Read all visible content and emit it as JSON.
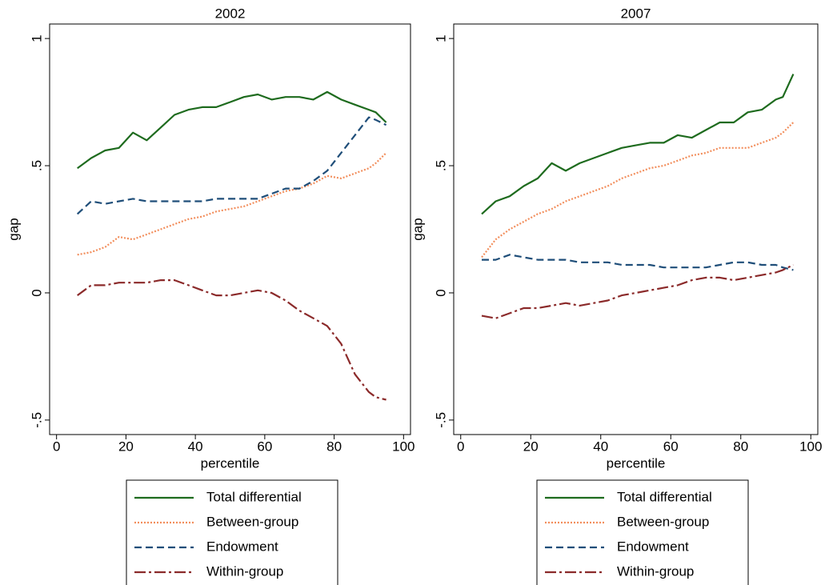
{
  "chart_data": [
    {
      "type": "line",
      "title": "2002",
      "x_label": "percentile",
      "y_label": "gap",
      "x": [
        6,
        10,
        14,
        18,
        22,
        26,
        30,
        34,
        38,
        42,
        46,
        50,
        54,
        58,
        62,
        66,
        70,
        74,
        78,
        82,
        86,
        90,
        92,
        95
      ],
      "xlim": [
        -2,
        102
      ],
      "xticks": [
        0,
        20,
        40,
        60,
        80,
        100
      ],
      "ylim": [
        -0.557,
        1.057
      ],
      "yticks": [
        {
          "value": -0.5,
          "label": "-.5"
        },
        0,
        {
          "value": 0.5,
          "label": ".5"
        },
        1
      ],
      "series": [
        {
          "name": "Total differential",
          "color": "#1e6b1e",
          "dash": "solid",
          "values": [
            0.49,
            0.53,
            0.56,
            0.57,
            0.63,
            0.6,
            0.65,
            0.7,
            0.72,
            0.73,
            0.73,
            0.75,
            0.77,
            0.78,
            0.76,
            0.77,
            0.77,
            0.76,
            0.79,
            0.76,
            0.74,
            0.72,
            0.71,
            0.67
          ]
        },
        {
          "name": "Between-group",
          "color": "#f28e5c",
          "dash": "dot",
          "values": [
            0.15,
            0.16,
            0.18,
            0.22,
            0.21,
            0.23,
            0.25,
            0.27,
            0.29,
            0.3,
            0.32,
            0.33,
            0.34,
            0.36,
            0.38,
            0.4,
            0.41,
            0.43,
            0.46,
            0.45,
            0.47,
            0.49,
            0.51,
            0.55
          ]
        },
        {
          "name": "Endowment",
          "color": "#1f4e79",
          "dash": "dash",
          "values": [
            0.31,
            0.36,
            0.35,
            0.36,
            0.37,
            0.36,
            0.36,
            0.36,
            0.36,
            0.36,
            0.37,
            0.37,
            0.37,
            0.37,
            0.39,
            0.41,
            0.41,
            0.44,
            0.48,
            0.55,
            0.62,
            0.69,
            0.68,
            0.66
          ]
        },
        {
          "name": "Within-group",
          "color": "#8b2a2a",
          "dash": "dashdot",
          "values": [
            -0.01,
            0.03,
            0.03,
            0.04,
            0.04,
            0.04,
            0.05,
            0.05,
            0.03,
            0.01,
            -0.01,
            -0.01,
            0.0,
            0.01,
            0.0,
            -0.03,
            -0.07,
            -0.1,
            -0.13,
            -0.2,
            -0.32,
            -0.39,
            -0.41,
            -0.42
          ]
        }
      ]
    },
    {
      "type": "line",
      "title": "2007",
      "x_label": "percentile",
      "y_label": "gap",
      "x": [
        6,
        10,
        14,
        18,
        22,
        26,
        30,
        34,
        38,
        42,
        46,
        50,
        54,
        58,
        62,
        66,
        70,
        74,
        78,
        82,
        86,
        90,
        92,
        95
      ],
      "xlim": [
        -2,
        102
      ],
      "xticks": [
        0,
        20,
        40,
        60,
        80,
        100
      ],
      "ylim": [
        -0.557,
        1.057
      ],
      "yticks": [
        {
          "value": -0.5,
          "label": "-.5"
        },
        0,
        {
          "value": 0.5,
          "label": ".5"
        },
        1
      ],
      "series": [
        {
          "name": "Total differential",
          "color": "#1e6b1e",
          "dash": "solid",
          "values": [
            0.31,
            0.36,
            0.38,
            0.42,
            0.45,
            0.51,
            0.48,
            0.51,
            0.53,
            0.55,
            0.57,
            0.58,
            0.59,
            0.59,
            0.62,
            0.61,
            0.64,
            0.67,
            0.67,
            0.71,
            0.72,
            0.76,
            0.77,
            0.86
          ]
        },
        {
          "name": "Between-group",
          "color": "#f28e5c",
          "dash": "dot",
          "values": [
            0.14,
            0.21,
            0.25,
            0.28,
            0.31,
            0.33,
            0.36,
            0.38,
            0.4,
            0.42,
            0.45,
            0.47,
            0.49,
            0.5,
            0.52,
            0.54,
            0.55,
            0.57,
            0.57,
            0.57,
            0.59,
            0.61,
            0.63,
            0.67
          ]
        },
        {
          "name": "Endowment",
          "color": "#1f4e79",
          "dash": "dash",
          "values": [
            0.13,
            0.13,
            0.15,
            0.14,
            0.13,
            0.13,
            0.13,
            0.12,
            0.12,
            0.12,
            0.11,
            0.11,
            0.11,
            0.1,
            0.1,
            0.1,
            0.1,
            0.11,
            0.12,
            0.12,
            0.11,
            0.11,
            0.1,
            0.09
          ]
        },
        {
          "name": "Within-group",
          "color": "#8b2a2a",
          "dash": "dashdot",
          "values": [
            -0.09,
            -0.1,
            -0.08,
            -0.06,
            -0.06,
            -0.05,
            -0.04,
            -0.05,
            -0.04,
            -0.03,
            -0.01,
            0.0,
            0.01,
            0.02,
            0.03,
            0.05,
            0.06,
            0.06,
            0.05,
            0.06,
            0.07,
            0.08,
            0.09,
            0.11
          ]
        }
      ]
    }
  ]
}
